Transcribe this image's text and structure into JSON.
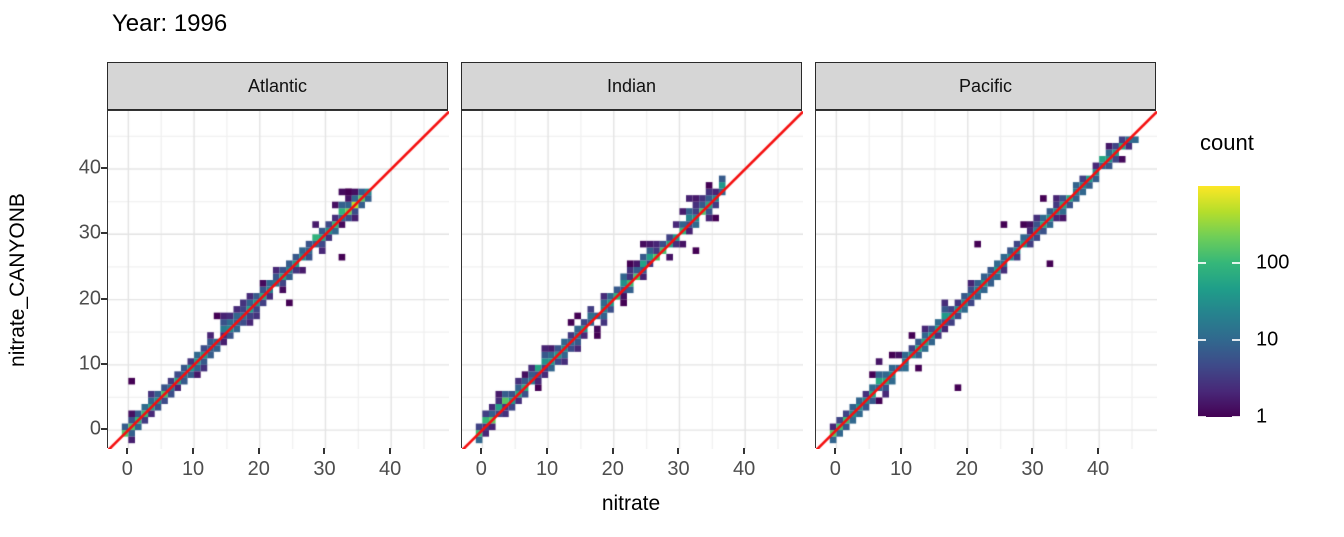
{
  "title": "Year: 1996",
  "chart_data": {
    "type": "heatmap",
    "subtype": "geom_bin2d faceted scatter of predicted vs observed nitrate, with y=x reference line",
    "title": "Year: 1996",
    "xlabel": "nitrate",
    "ylabel": "nitrate_CANYONB",
    "x_ticks": [
      0,
      10,
      20,
      30,
      40
    ],
    "y_ticks": [
      0,
      10,
      20,
      30,
      40
    ],
    "minor_ticks": [
      5,
      15,
      25,
      35,
      45
    ],
    "x_range": [
      -3.1,
      48.8
    ],
    "y_range": [
      -2.9,
      48.9
    ],
    "grid": true,
    "bin_size": 1,
    "reference_line": {
      "equation": "y = x",
      "color": "#f50f0f",
      "width": 2.6
    },
    "style": {
      "panel_bg": "#ffffff",
      "grid_major": "#e4e4e4",
      "grid_minor": "#f1f1f1",
      "panel_border": "#333333",
      "strip_fill": "#d6d6d6",
      "strip_border": "#2a2a2a",
      "axis_text": "#4d4d4d"
    },
    "color_scale": {
      "palette": "viridis",
      "trans": "log10",
      "domain": [
        1,
        1000
      ],
      "legend_title": "count",
      "legend_position": "right",
      "legend_ticks": [
        {
          "label": "100",
          "frac": 0.6667
        },
        {
          "label": "10",
          "frac": 0.3333
        },
        {
          "label": "1",
          "frac": 0.0
        }
      ],
      "stops": [
        "#440154",
        "#482878",
        "#3e4a89",
        "#31688e",
        "#26828e",
        "#1f9e89",
        "#35b779",
        "#6ece58",
        "#b5de2b",
        "#fde725"
      ]
    },
    "facets": [
      {
        "label": "Atlantic",
        "x_min": -1,
        "x_max": 36,
        "y_cap": 36,
        "seed": 11,
        "p2": 0.35,
        "up_bias": 0.12,
        "origin_boost": true,
        "segments": [
          {
            "from": 31,
            "to": 35,
            "boost": 3.0,
            "spread": 3
          }
        ],
        "outliers": [
          [
            0,
            7
          ],
          [
            24,
            19
          ],
          [
            32,
            26
          ],
          [
            13,
            17
          ]
        ]
      },
      {
        "label": "Indian",
        "x_min": -1,
        "x_max": 36,
        "y_cap": 38,
        "seed": 22,
        "p2": 0.4,
        "up_bias": 0.3,
        "origin_boost": true,
        "segments": [
          {
            "from": 20,
            "to": 33,
            "boost": 2.4,
            "spread": 3,
            "up_bias": 0.5
          }
        ],
        "outliers": [
          [
            32,
            27
          ]
        ]
      },
      {
        "label": "Pacific",
        "x_min": -1,
        "x_max": 45,
        "y_cap": 44,
        "seed": 33,
        "p2": 0.2,
        "up_bias": 0.07,
        "origin_boost": true,
        "segments": [
          {
            "from": 3,
            "to": 8,
            "spread": 3,
            "boost": 1.2
          }
        ],
        "outliers": [
          [
            18,
            6
          ],
          [
            21,
            28
          ],
          [
            25,
            31
          ],
          [
            31,
            35
          ],
          [
            32,
            25
          ]
        ]
      }
    ]
  }
}
